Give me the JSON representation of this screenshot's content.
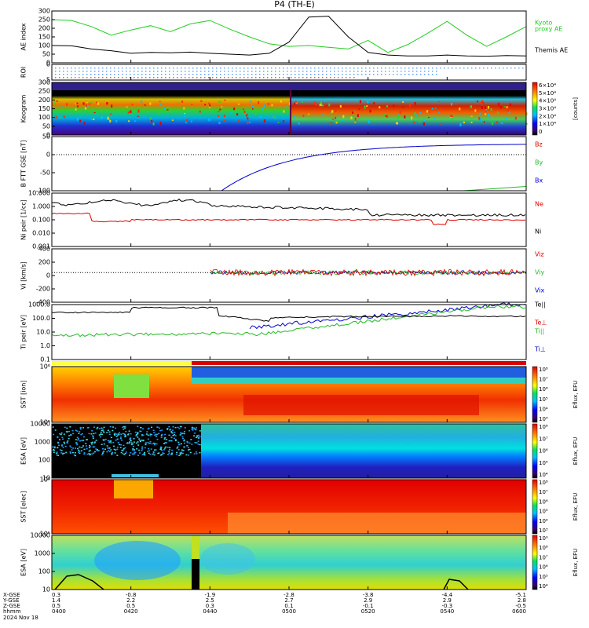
{
  "figure": {
    "title": "P4 (TH-E)",
    "date_label": "2024 Nov 18",
    "time_axis_caption": "hhmm",
    "time_ticks": [
      "0400",
      "0420",
      "0440",
      "0500",
      "0520",
      "0540",
      "0600"
    ],
    "coord_rows": [
      {
        "label": "X-GSE",
        "values": [
          "0.3",
          "-0.8",
          "-1.9",
          "-2.8",
          "-3.8",
          "-4.4",
          "-5.1"
        ]
      },
      {
        "label": "Y-GSE",
        "values": [
          "1.4",
          "2.2",
          "2.5",
          "2.7",
          "2.9",
          "2.9",
          "2.8"
        ]
      },
      {
        "label": "Z-GSE",
        "values": [
          "0.5",
          "0.5",
          "0.3",
          "0.1",
          "-0.1",
          "-0.3",
          "-0.5"
        ]
      }
    ]
  },
  "chart_data": [
    {
      "type": "line",
      "panel": "ae",
      "ylabel": "AE index",
      "ylim": [
        0,
        300
      ],
      "yticks": [
        "300",
        "250",
        "200",
        "150",
        "100",
        "50",
        "0"
      ],
      "x_minutes": [
        0,
        5,
        10,
        15,
        20,
        25,
        30,
        35,
        40,
        45,
        50,
        55,
        60,
        65,
        70,
        75,
        80,
        85,
        90,
        95,
        100,
        105,
        110,
        115,
        120
      ],
      "series": [
        {
          "name": "Kyoto proxy AE",
          "color": "#22cc22",
          "values": [
            250,
            245,
            210,
            160,
            190,
            215,
            180,
            225,
            245,
            195,
            150,
            110,
            95,
            100,
            90,
            80,
            130,
            60,
            105,
            170,
            240,
            160,
            95,
            150,
            210
          ]
        },
        {
          "name": "Themis AE",
          "color": "#000000",
          "values": [
            100,
            98,
            80,
            70,
            55,
            60,
            58,
            62,
            55,
            50,
            45,
            55,
            120,
            265,
            270,
            150,
            60,
            45,
            40,
            40,
            45,
            40,
            38,
            42,
            40
          ]
        }
      ]
    },
    {
      "type": "heatmap",
      "panel": "roi",
      "ylabel": "ROI",
      "yticks": [
        "0",
        "5"
      ]
    },
    {
      "type": "heatmap",
      "panel": "keogram",
      "ylabel": "Keogram",
      "yticks": [
        "300",
        "250",
        "200",
        "150",
        "100",
        "50",
        "0"
      ],
      "colorbar": {
        "label": "[counts]",
        "ticks": [
          "6×10⁴",
          "5×10⁴",
          "4×10⁴",
          "3×10⁴",
          "2×10⁴",
          "1×10⁴",
          "0"
        ]
      }
    },
    {
      "type": "line",
      "panel": "bfield",
      "ylabel": "B FTT GSE [nT]",
      "ylim": [
        -100,
        50
      ],
      "yticks": [
        "50",
        "0",
        "-50",
        "-100"
      ],
      "series": [
        {
          "name": "Bz",
          "color": "#dd0000"
        },
        {
          "name": "By",
          "color": "#22bb22"
        },
        {
          "name": "Bx",
          "color": "#0000cc"
        }
      ]
    },
    {
      "type": "line",
      "panel": "density",
      "ylabel": "Ni peir [1/cc]",
      "yticks": [
        "10.000",
        "1.000",
        "0.100",
        "0.010",
        "0.001"
      ],
      "series": [
        {
          "name": "Ne",
          "color": "#dd0000"
        },
        {
          "name": "Ni",
          "color": "#000000"
        }
      ]
    },
    {
      "type": "line",
      "panel": "velocity",
      "ylabel": "Vi [km/s]",
      "ylim": [
        -500,
        400
      ],
      "yticks": [
        "400",
        "200",
        "0",
        "-200",
        "-400"
      ],
      "series": [
        {
          "name": "Viz",
          "color": "#dd0000"
        },
        {
          "name": "Viy",
          "color": "#22bb22"
        },
        {
          "name": "Vix",
          "color": "#0000cc"
        }
      ]
    },
    {
      "type": "line",
      "panel": "temperature",
      "ylabel": "Ti peir [eV]",
      "yticks": [
        "1000.0",
        "100.0",
        "10.0",
        "1.0",
        "0.1"
      ],
      "series": [
        {
          "name": "Te||",
          "color": "#000000"
        },
        {
          "name": "Te⊥",
          "color": "#dd0000"
        },
        {
          "name": "Ti||",
          "color": "#22bb22"
        },
        {
          "name": "Ti⊥",
          "color": "#0000cc"
        }
      ]
    },
    {
      "type": "heatmap",
      "panel": "sst_ion",
      "ylabel": "SST [ion]",
      "yticks": [
        "10⁶",
        "10⁵"
      ],
      "colorbar": {
        "label": "Eflux, EFU",
        "ticks": [
          "10⁸",
          "10⁷",
          "10⁶",
          "10⁵",
          "10⁴",
          "10³"
        ]
      }
    },
    {
      "type": "heatmap",
      "panel": "esa_ion",
      "ylabel": "ESA [eV]",
      "yticks": [
        "10000",
        "1000",
        "100",
        "10"
      ],
      "colorbar": {
        "label": "Eflux, EFU",
        "ticks": [
          "10⁸",
          "10⁷",
          "10⁶",
          "10⁵",
          "10⁴"
        ]
      }
    },
    {
      "type": "heatmap",
      "panel": "sst_elec",
      "ylabel": "SST [elec]",
      "yticks": [
        "10⁶",
        "10⁵"
      ],
      "colorbar": {
        "label": "Eflux, EFU",
        "ticks": [
          "10⁸",
          "10⁷",
          "10⁶",
          "10⁵",
          "10⁴",
          "10³"
        ]
      }
    },
    {
      "type": "heatmap",
      "panel": "esa_elec",
      "ylabel": "ESA [eV]",
      "yticks": [
        "10000",
        "1000",
        "100",
        "10"
      ],
      "colorbar": {
        "label": "Eflux, EFU",
        "ticks": [
          "10⁹",
          "10⁸",
          "10⁷",
          "10⁶",
          "10⁵",
          "10⁴"
        ]
      }
    }
  ]
}
